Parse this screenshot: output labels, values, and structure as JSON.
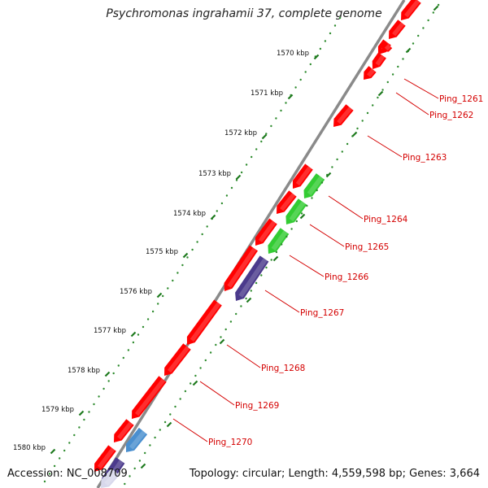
{
  "title": "Psychromonas ingrahamii 37, complete genome",
  "footer": {
    "accession": "Accession: NC_008709",
    "topology": "Topology: circular; Length: 4,559,598 bp; Genes: 3,664"
  },
  "colors": {
    "backbone": "#8a8a8a",
    "scale_dots": "#2e8b2e",
    "tick": "#1e7a1e",
    "gene_red": "#ff0000",
    "gene_green": "#33cc33",
    "gene_navy": "#4b3a8c",
    "gene_steelblue": "#4a8fcf",
    "gene_lavender": "#d8d8ec",
    "label_red": "#d40000"
  },
  "scale_labels": [
    "1570 kbp",
    "1571 kbp",
    "1572 kbp",
    "1573 kbp",
    "1574 kbp",
    "1575 kbp",
    "1576 kbp",
    "1577 kbp",
    "1578 kbp",
    "1579 kbp",
    "1580 kbp"
  ],
  "gene_labels": [
    "Ping_1261",
    "Ping_1262",
    "Ping_1263",
    "Ping_1264",
    "Ping_1265",
    "Ping_1266",
    "Ping_1267",
    "Ping_1268",
    "Ping_1269",
    "Ping_1270"
  ]
}
